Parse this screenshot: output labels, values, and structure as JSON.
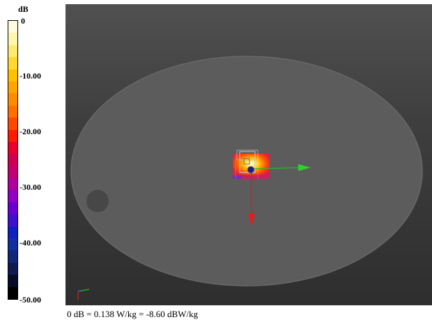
{
  "chart_data": {
    "type": "heatmap",
    "colorbar": {
      "unit": "dB",
      "range": [
        -50,
        0
      ],
      "tick_labels": [
        "0",
        "-10.00",
        "-20.00",
        "-30.00",
        "-40.00",
        "-50.00"
      ],
      "tick_values": [
        0,
        -10,
        -20,
        -30,
        -40,
        -50
      ],
      "colors": [
        "#fffde0",
        "#fff7b0",
        "#ffeb70",
        "#ffd830",
        "#ffc000",
        "#ffa500",
        "#ff8c00",
        "#ff7000",
        "#ff4800",
        "#ff1a00",
        "#e8002a",
        "#d00050",
        "#c00070",
        "#b0009a",
        "#9000c0",
        "#6a00d0",
        "#4010d0",
        "#1020c0",
        "#1030a0",
        "#102878",
        "#101c50",
        "#080c28",
        "#000000"
      ]
    },
    "caption": "0 dB = 0.138 W/kg = -8.60 dBW/kg"
  },
  "colors": {
    "background": "#3e3e3e",
    "phantom": "#5a5a5a",
    "axis_x": "#20c020",
    "axis_y": "#d02020",
    "axis_z": "#202080"
  }
}
